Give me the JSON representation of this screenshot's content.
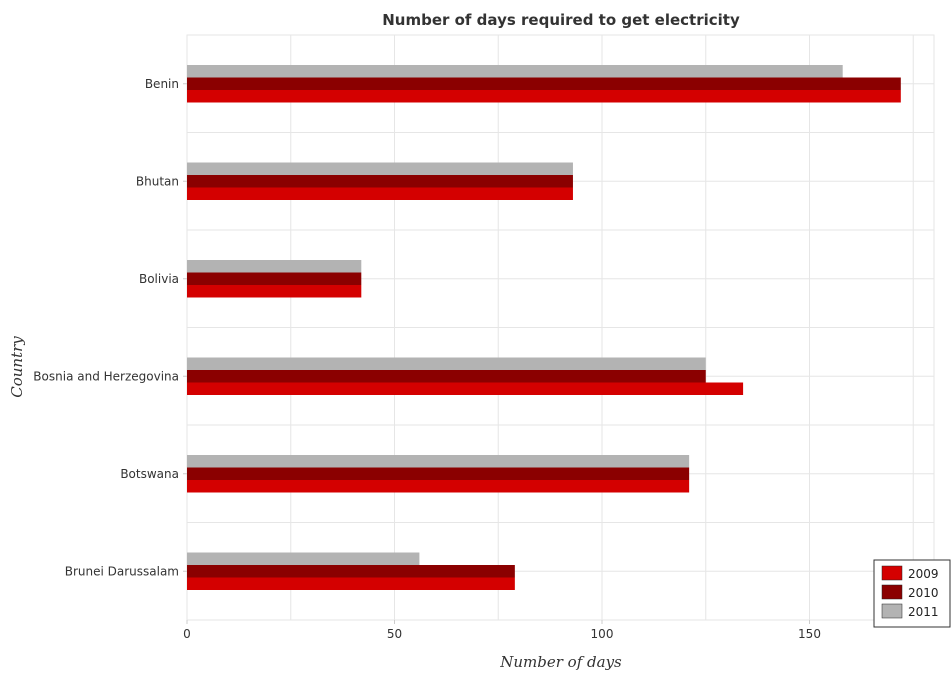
{
  "chart_data": {
    "type": "bar",
    "orientation": "horizontal",
    "title": "Number of days required to get electricity",
    "xlabel": "Number of days",
    "ylabel": "Country",
    "categories": [
      "Benin",
      "Bhutan",
      "Bolivia",
      "Bosnia and Herzegovina",
      "Botswana",
      "Brunei Darussalam"
    ],
    "series": [
      {
        "name": "2009",
        "color": "#d40000",
        "values": [
          172,
          93,
          42,
          134,
          121,
          79
        ]
      },
      {
        "name": "2010",
        "color": "#8b0000",
        "values": [
          172,
          93,
          42,
          125,
          121,
          79
        ]
      },
      {
        "name": "2011",
        "color": "#b3b3b3",
        "values": [
          158,
          93,
          42,
          125,
          121,
          56
        ]
      }
    ],
    "xlim": [
      0,
      180
    ],
    "xticks": [
      0,
      50,
      100,
      150
    ],
    "grid": true,
    "legend_position": "bottom-right"
  }
}
